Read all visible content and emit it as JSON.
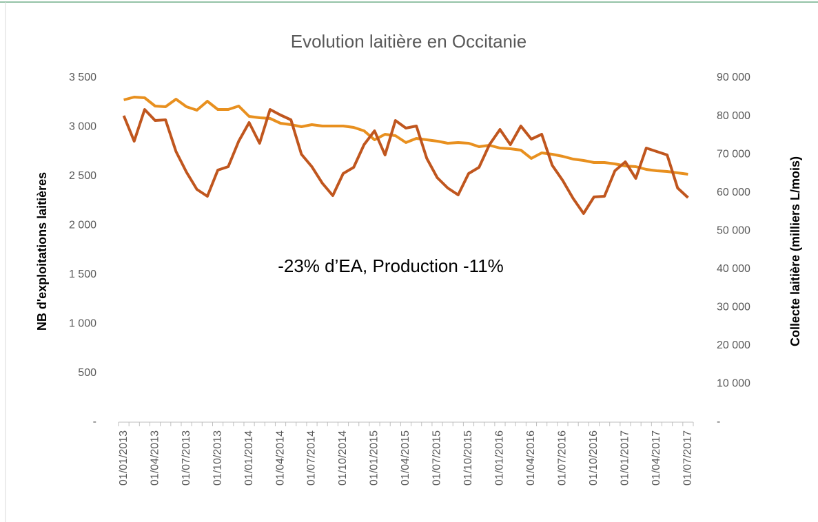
{
  "chart_data": {
    "type": "line",
    "title": "Evolution laitière en Occitanie",
    "annotation": "-23% d’EA, Production -11%",
    "y_label": "NB d'exploitations laitières",
    "y2_label": "Collecte laitière (milliers L/mois)",
    "categories": [
      "01/01/2013",
      null,
      null,
      "01/04/2013",
      null,
      null,
      "01/07/2013",
      null,
      null,
      "01/10/2013",
      null,
      null,
      "01/01/2014",
      null,
      null,
      "01/04/2014",
      null,
      null,
      "01/07/2014",
      null,
      null,
      "01/10/2014",
      null,
      null,
      "01/01/2015",
      null,
      null,
      "01/04/2015",
      null,
      null,
      "01/07/2015",
      null,
      null,
      "01/10/2015",
      null,
      null,
      "01/01/2016",
      null,
      null,
      "01/04/2016",
      null,
      null,
      "01/07/2016",
      null,
      null,
      "01/10/2016",
      null,
      null,
      "01/01/2017",
      null,
      null,
      "01/04/2017",
      null,
      null,
      "01/07/2017"
    ],
    "series": [
      {
        "color": "#e8901f",
        "axis": "y",
        "values": [
          3276,
          3304,
          3297,
          3213,
          3206,
          3283,
          3206,
          3171,
          3262,
          3178,
          3178,
          3213,
          3108,
          3094,
          3087,
          3038,
          3024,
          3003,
          3024,
          3010,
          3010,
          3010,
          2996,
          2961,
          2870,
          2926,
          2912,
          2842,
          2884,
          2870,
          2856,
          2835,
          2842,
          2835,
          2800,
          2814,
          2786,
          2779,
          2765,
          2681,
          2737,
          2723,
          2702,
          2674,
          2660,
          2639,
          2639,
          2625,
          2604,
          2597,
          2569,
          2555,
          2548,
          2534,
          2520
        ]
      },
      {
        "color": "#c0561e",
        "axis": "y2",
        "values": [
          80100,
          73440,
          81720,
          78840,
          79020,
          70740,
          65340,
          60840,
          59040,
          65880,
          66780,
          73440,
          78300,
          72900,
          81720,
          80280,
          79020,
          70020,
          66780,
          62460,
          59220,
          64980,
          66600,
          72540,
          76140,
          69840,
          78840,
          76860,
          77400,
          68940,
          63900,
          61200,
          59400,
          64980,
          66600,
          72540,
          76500,
          72540,
          77400,
          73980,
          75240,
          67140,
          63180,
          58500,
          54540,
          58860,
          59040,
          65700,
          68040,
          63720,
          71640,
          70740,
          69840,
          61200,
          58680
        ]
      }
    ],
    "ylim": [
      0,
      3500
    ],
    "yticks": [
      {
        "value": 0,
        "label": "-"
      },
      500,
      {
        "value": 1000,
        "label": "1 000"
      },
      {
        "value": 1500,
        "label": "1 500"
      },
      {
        "value": 2000,
        "label": "2 000"
      },
      {
        "value": 2500,
        "label": "2 500"
      },
      {
        "value": 3000,
        "label": "3 000"
      },
      {
        "value": 3500,
        "label": "3 500"
      }
    ],
    "y2lim": [
      0,
      90000
    ],
    "y2ticks": [
      {
        "value": 0,
        "label": "-"
      },
      {
        "value": 10000,
        "label": "10 000"
      },
      {
        "value": 20000,
        "label": "20 000"
      },
      {
        "value": 30000,
        "label": "30 000"
      },
      {
        "value": 40000,
        "label": "40 000"
      },
      {
        "value": 50000,
        "label": "50 000"
      },
      {
        "value": 60000,
        "label": "60 000"
      },
      {
        "value": 70000,
        "label": "70 000"
      },
      {
        "value": 80000,
        "label": "80 000"
      },
      {
        "value": 90000,
        "label": "90 000"
      }
    ]
  }
}
